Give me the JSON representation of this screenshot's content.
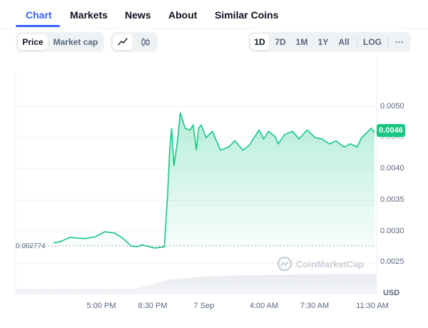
{
  "tabs": [
    "Chart",
    "Markets",
    "News",
    "About",
    "Similar Coins"
  ],
  "active_tab": "Chart",
  "type_toggle": {
    "price": "Price",
    "market_cap": "Market cap",
    "active": "Price"
  },
  "chart_mode": {
    "line_icon": "line-chart-icon",
    "candle_icon": "candlestick-icon",
    "active": "line"
  },
  "ranges": [
    "1D",
    "7D",
    "1M",
    "1Y",
    "All"
  ],
  "active_range": "1D",
  "scale_label": "LOG",
  "more_icon": "more-horizontal-icon",
  "current_price": "0.0046",
  "open_price_label": "0.002774",
  "currency": "USD",
  "watermark": "CoinMarketCap",
  "colors": {
    "accent": "#3861fb",
    "up": "#16c784",
    "down": "#ea3943"
  },
  "chart_data": {
    "type": "line",
    "x_ticks": [
      "5:00 PM",
      "8:30 PM",
      "7 Sep",
      "4:00 AM",
      "7:30 AM",
      "11:30 AM"
    ],
    "y_ticks": [
      "0.0050",
      "0.0045",
      "0.0040",
      "0.0035",
      "0.0030",
      "0.0025"
    ],
    "ylim": [
      0.00215,
      0.0055
    ],
    "open_price": 0.002774,
    "current_price": 0.0046,
    "xlim": [
      0,
      1000
    ],
    "x": [
      0,
      25,
      50,
      75,
      100,
      130,
      160,
      190,
      215,
      232,
      242,
      260,
      275,
      300,
      315,
      330,
      345,
      355,
      362,
      368,
      375,
      385,
      395,
      410,
      425,
      435,
      445,
      452,
      460,
      475,
      495,
      520,
      545,
      565,
      590,
      610,
      625,
      640,
      655,
      670,
      690,
      700,
      720,
      745,
      765,
      790,
      815,
      835,
      860,
      880,
      905,
      925,
      945,
      960,
      980,
      990,
      1000
    ],
    "price": [
      0.00282,
      0.00285,
      0.00291,
      0.0029,
      0.00289,
      0.00292,
      0.003,
      0.00298,
      0.0029,
      0.00282,
      0.00277,
      0.00276,
      0.00279,
      0.00276,
      0.00274,
      0.00275,
      0.00276,
      0.00355,
      0.0043,
      0.00465,
      0.00405,
      0.0044,
      0.0049,
      0.00465,
      0.00462,
      0.0047,
      0.0043,
      0.00465,
      0.0047,
      0.0045,
      0.0046,
      0.0043,
      0.00435,
      0.00445,
      0.0043,
      0.00438,
      0.0045,
      0.00462,
      0.00448,
      0.0046,
      0.00452,
      0.0044,
      0.00455,
      0.0046,
      0.00448,
      0.00462,
      0.0045,
      0.00448,
      0.0044,
      0.00445,
      0.00435,
      0.0044,
      0.00435,
      0.0045,
      0.0046,
      0.00465,
      0.00458
    ],
    "volume_note": "volume area at bottom"
  }
}
